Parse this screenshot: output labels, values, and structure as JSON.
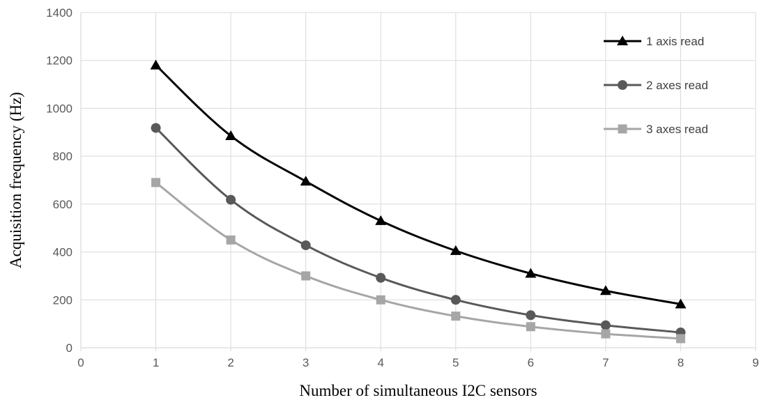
{
  "chart_data": {
    "type": "line",
    "title": "",
    "xlabel": "Number of simultaneous I2C sensors",
    "ylabel": "Acquisition frequency (Hz)",
    "xlim": [
      0,
      9
    ],
    "ylim": [
      0,
      1400
    ],
    "x_ticks": [
      "0",
      "1",
      "2",
      "3",
      "4",
      "5",
      "6",
      "7",
      "8",
      "9"
    ],
    "y_ticks": [
      "0",
      "200",
      "400",
      "600",
      "800",
      "1000",
      "1200",
      "1400"
    ],
    "grid": true,
    "legend_position": "top-right",
    "x": [
      1,
      2,
      3,
      4,
      5,
      6,
      7,
      8
    ],
    "series": [
      {
        "name": "1 axis read",
        "color": "#000000",
        "marker": "triangle",
        "values": [
          1180,
          885,
          695,
          530,
          405,
          310,
          238,
          182
        ]
      },
      {
        "name": "2 axes read",
        "color": "#595959",
        "marker": "circle",
        "values": [
          918,
          618,
          428,
          292,
          200,
          136,
          94,
          64
        ]
      },
      {
        "name": "3 axes read",
        "color": "#a6a6a6",
        "marker": "square",
        "values": [
          690,
          450,
          300,
          200,
          132,
          88,
          58,
          38
        ]
      }
    ]
  }
}
